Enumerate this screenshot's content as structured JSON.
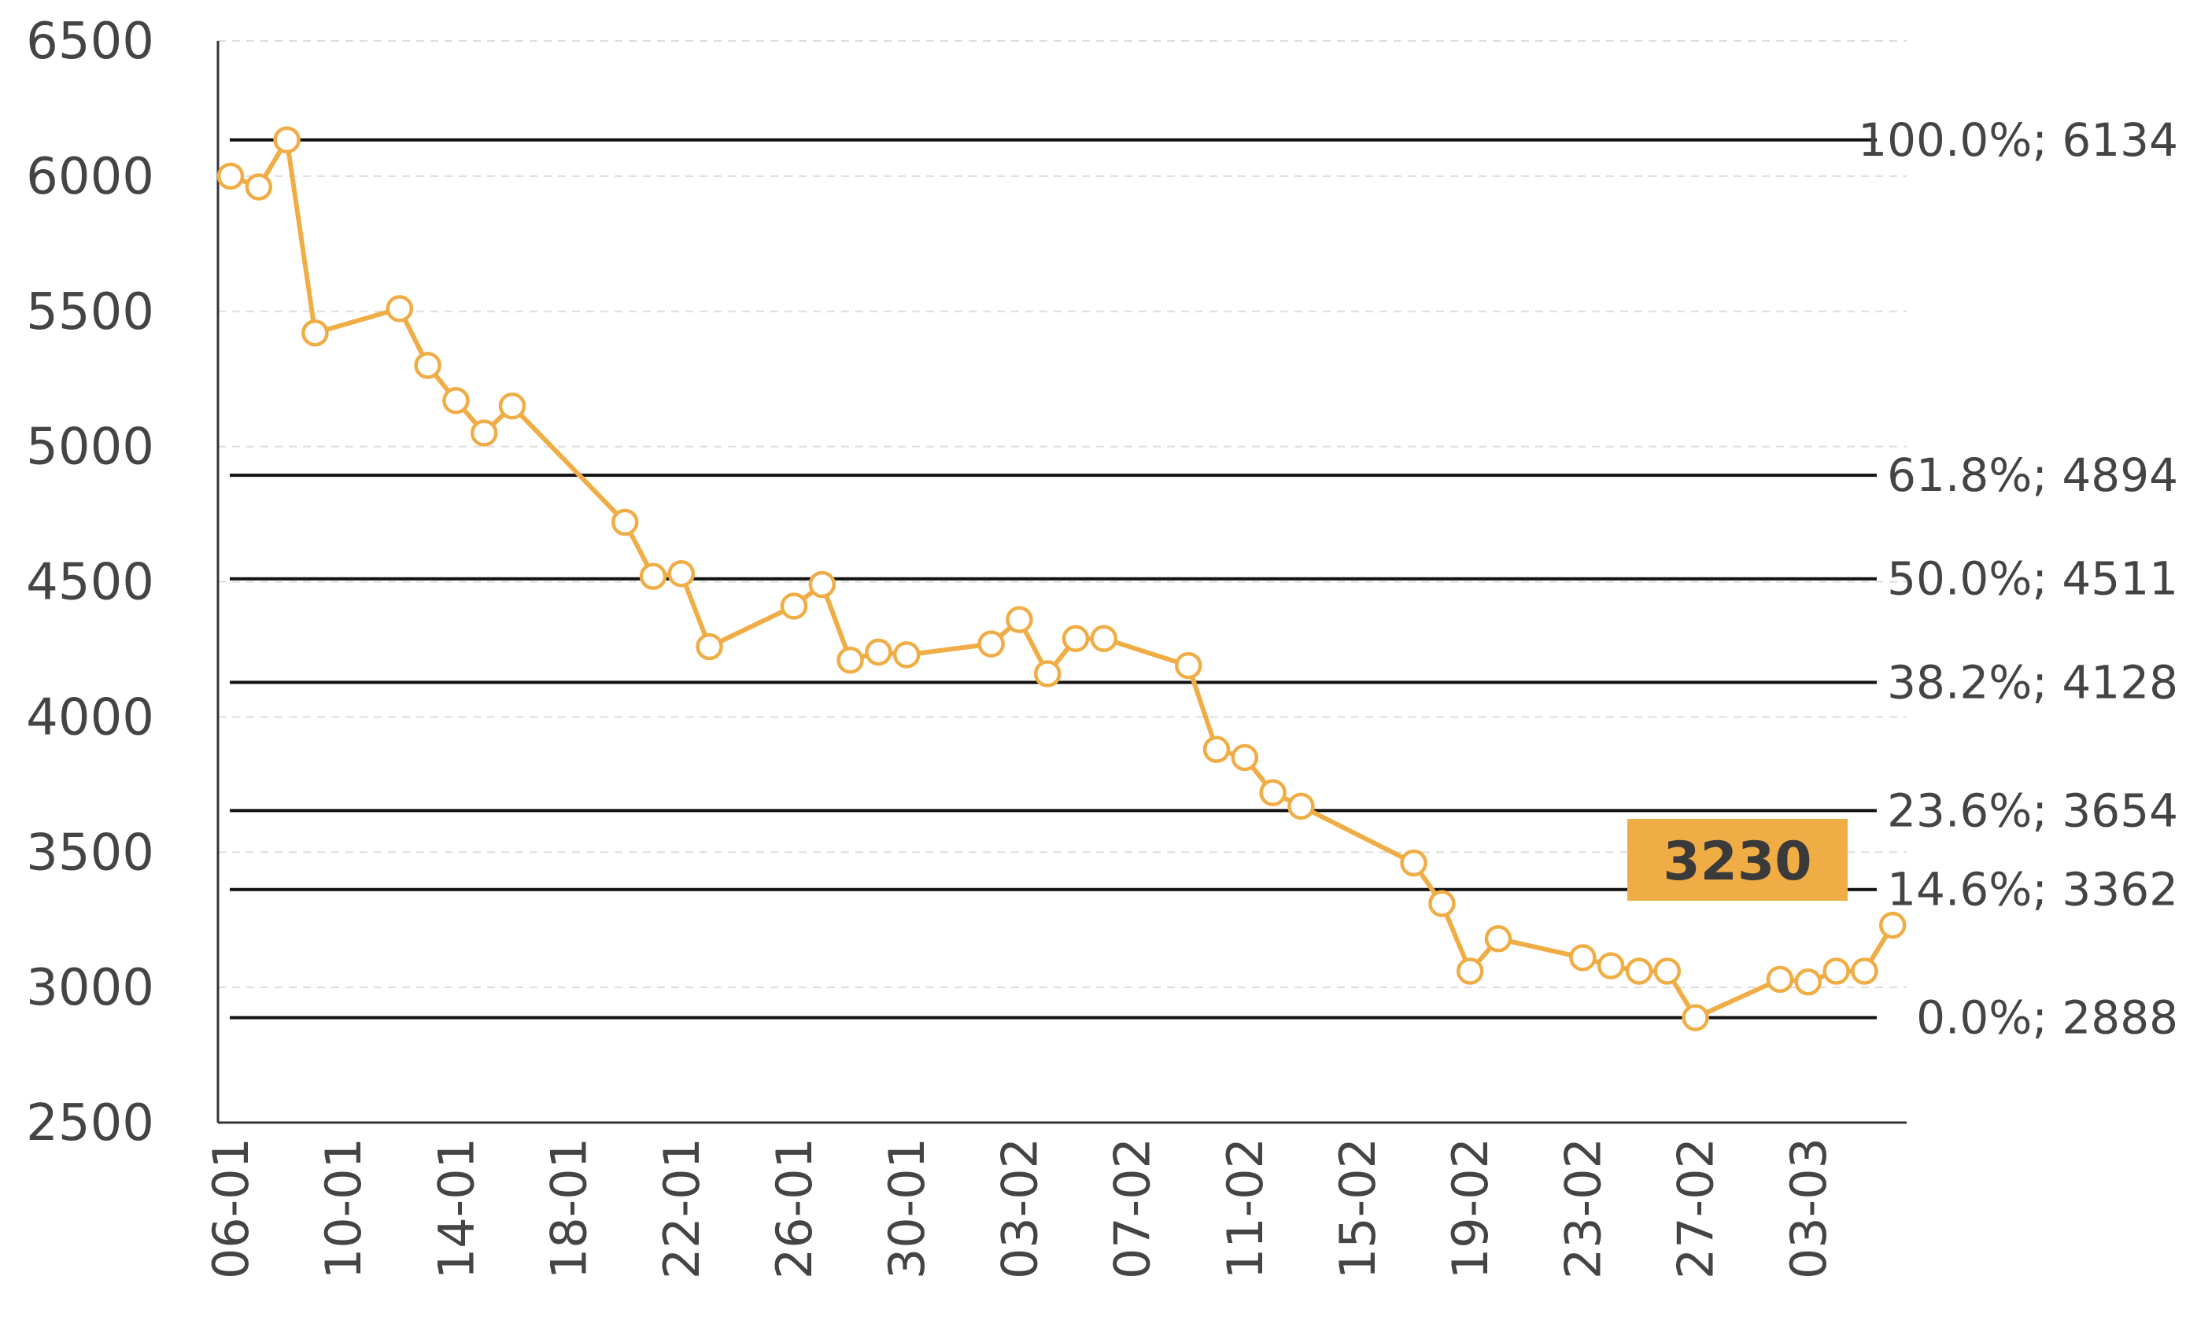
{
  "chart_data": {
    "type": "line",
    "title": "",
    "xlabel": "",
    "ylabel": "",
    "ylim": [
      2500,
      6500
    ],
    "grid": true,
    "y_ticks": [
      2500,
      3000,
      3500,
      4000,
      4500,
      5000,
      5500,
      6000,
      6500
    ],
    "x_ticks": [
      "06-01",
      "10-01",
      "14-01",
      "18-01",
      "22-01",
      "26-01",
      "30-01",
      "03-02",
      "07-02",
      "11-02",
      "15-02",
      "19-02",
      "23-02",
      "27-02",
      "03-03"
    ],
    "dates": [
      "06-01",
      "07-01",
      "08-01",
      "09-01",
      "12-01",
      "13-01",
      "14-01",
      "15-01",
      "16-01",
      "20-01",
      "21-01",
      "22-01",
      "23-01",
      "26-01",
      "27-01",
      "28-01",
      "29-01",
      "30-01",
      "02-02",
      "03-02",
      "04-02",
      "05-02",
      "06-02",
      "09-02",
      "10-02",
      "11-02",
      "12-02",
      "13-02",
      "17-02",
      "18-02",
      "19-02",
      "20-02",
      "23-02",
      "24-02",
      "25-02",
      "26-02",
      "27-02",
      "02-03",
      "03-03",
      "04-03",
      "05-03",
      "06-03"
    ],
    "values": [
      6000,
      5960,
      6134,
      5420,
      5510,
      5300,
      5170,
      5050,
      5150,
      4720,
      4520,
      4530,
      4260,
      4410,
      4490,
      4210,
      4240,
      4230,
      4270,
      4360,
      4160,
      4290,
      4290,
      4190,
      3880,
      3850,
      3720,
      3670,
      3460,
      3310,
      3060,
      3180,
      3110,
      3080,
      3060,
      3060,
      2888,
      3030,
      3020,
      3060,
      3060,
      3230
    ],
    "fib_levels": [
      {
        "value": 6134,
        "label": "100.0%; 6134"
      },
      {
        "value": 4894,
        "label": "61.8%; 4894"
      },
      {
        "value": 4511,
        "label": "50.0%; 4511"
      },
      {
        "value": 4128,
        "label": "38.2%; 4128"
      },
      {
        "value": 3654,
        "label": "23.6%; 3654"
      },
      {
        "value": 3362,
        "label": "14.6%; 3362"
      },
      {
        "value": 2888,
        "label": "0.0%; 2888"
      }
    ],
    "last_value_label": "3230",
    "colors": {
      "series": "#f0ad45",
      "fib": "#111111",
      "grid": "#dddddd",
      "axis": "#333333",
      "text": "#444444",
      "badge": "#f0ad45",
      "badge_text": "#3a3a3a"
    }
  }
}
